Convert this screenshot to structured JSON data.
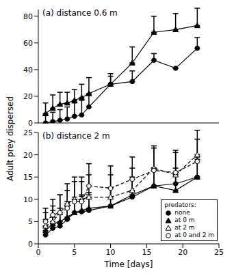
{
  "chart_data": [
    {
      "type": "line",
      "title": "(a) distance 0.6 m",
      "y_label": "Adult prey dispersed",
      "x": [
        1,
        2,
        3,
        4,
        5,
        6,
        7,
        10,
        13,
        16,
        19,
        22
      ],
      "xlim": [
        0,
        25
      ],
      "xticks": [
        0,
        5,
        10,
        15,
        20,
        25
      ],
      "ylim": [
        0,
        85
      ],
      "yticks": [
        0,
        20,
        40,
        60,
        80
      ],
      "tick_labels": "y",
      "series": [
        {
          "name": "none",
          "color": "#000000",
          "marker": "circle",
          "line_style": "solid",
          "values": [
            0,
            1,
            2,
            3,
            5,
            6,
            12,
            29,
            31,
            47,
            41,
            56
          ],
          "errors": [
            6,
            7,
            8,
            9,
            10,
            11,
            9,
            6,
            8,
            5,
            0,
            8
          ]
        },
        {
          "name": "at 0 m",
          "color": "#000000",
          "marker": "triangle",
          "line_style": "solid",
          "values": [
            7,
            11,
            14,
            15,
            17,
            19,
            22,
            29,
            45,
            68,
            70,
            73
          ],
          "errors": [
            8,
            10,
            9,
            8,
            8,
            10,
            12,
            8,
            12,
            12,
            12,
            13
          ]
        }
      ]
    },
    {
      "type": "line",
      "title": "(b) distance 2 m",
      "x_label": "Time [days]",
      "legend_title": "predators:",
      "legend": "lower right",
      "x": [
        1,
        2,
        3,
        4,
        5,
        6,
        7,
        10,
        13,
        16,
        19,
        22
      ],
      "xlim": [
        0,
        25
      ],
      "xticks": [
        0,
        5,
        10,
        15,
        20,
        25
      ],
      "ylim": [
        0,
        25
      ],
      "yticks": [
        0,
        5,
        10,
        15,
        20,
        25
      ],
      "series": [
        {
          "name": "none",
          "color": "#000000",
          "marker": "circle",
          "line_style": "solid",
          "values": [
            2,
            3.5,
            4,
            5.5,
            7,
            7.2,
            7.5,
            8.5,
            10.5,
            13,
            13.5,
            15
          ],
          "errors": [
            2,
            2.5,
            3,
            3,
            3,
            3.5,
            3.5,
            4,
            4,
            4,
            3.5,
            4
          ]
        },
        {
          "name": "at 0 m",
          "color": "#000000",
          "marker": "triangle",
          "line_style": "solid",
          "values": [
            3,
            4.5,
            5,
            6,
            7,
            7.5,
            8,
            8.5,
            11,
            13,
            12,
            15
          ],
          "errors": [
            2.5,
            3,
            3,
            3.5,
            3.5,
            3.5,
            3.5,
            4,
            4,
            4,
            4,
            4.5
          ]
        },
        {
          "name": "at 2 m",
          "color": "#000000",
          "marker": "open_triangle",
          "line_style": "dashed",
          "values": [
            4,
            5,
            7,
            9,
            10,
            10,
            10.5,
            10.5,
            12,
            17,
            15.5,
            20
          ],
          "errors": [
            3,
            3.5,
            4,
            4.5,
            5,
            5,
            5,
            5,
            5,
            5,
            5,
            5.5
          ]
        },
        {
          "name": "at 0 and 2 m",
          "color": "#000000",
          "marker": "open_circle",
          "line_style": "dashed",
          "values": [
            5,
            6.5,
            7,
            8,
            9.5,
            9.5,
            13,
            12.5,
            14.5,
            16.5,
            16,
            18.5
          ],
          "errors": [
            3,
            3.5,
            4,
            4,
            4.5,
            4.5,
            5,
            5,
            5,
            5,
            5,
            5
          ]
        }
      ]
    }
  ]
}
